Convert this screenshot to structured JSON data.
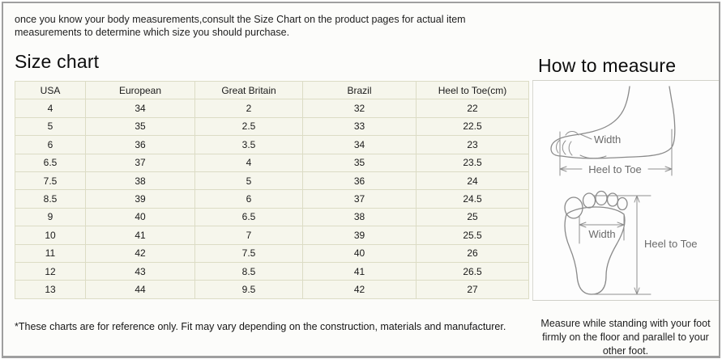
{
  "intro_text": "once you know your body measurements,consult the Size Chart on the product pages for actual item measurements to determine which size you should purchase.",
  "size_chart": {
    "title": "Size chart",
    "columns": [
      "USA",
      "European",
      "Great Britain",
      "Brazil",
      "Heel to Toe(cm)"
    ],
    "rows": [
      [
        "4",
        "34",
        "2",
        "32",
        "22"
      ],
      [
        "5",
        "35",
        "2.5",
        "33",
        "22.5"
      ],
      [
        "6",
        "36",
        "3.5",
        "34",
        "23"
      ],
      [
        "6.5",
        "37",
        "4",
        "35",
        "23.5"
      ],
      [
        "7.5",
        "38",
        "5",
        "36",
        "24"
      ],
      [
        "8.5",
        "39",
        "6",
        "37",
        "24.5"
      ],
      [
        "9",
        "40",
        "6.5",
        "38",
        "25"
      ],
      [
        "10",
        "41",
        "7",
        "39",
        "25.5"
      ],
      [
        "11",
        "42",
        "7.5",
        "40",
        "26"
      ],
      [
        "12",
        "43",
        "8.5",
        "41",
        "26.5"
      ],
      [
        "13",
        "44",
        "9.5",
        "42",
        "27"
      ]
    ],
    "footnote": "*These charts are for reference only. Fit may vary depending on the construction, materials and manufacturer."
  },
  "how_to_measure": {
    "title": "How to measure",
    "side_view_labels": {
      "width": "Width",
      "length": "Heel to Toe"
    },
    "footprint_labels": {
      "width": "Width",
      "length": "Heel to Toe"
    },
    "note": "Measure while standing with your foot firmly on the floor and parallel to your other foot."
  },
  "chart_data": {
    "type": "table",
    "title": "Size chart",
    "columns": [
      "USA",
      "European",
      "Great Britain",
      "Brazil",
      "Heel to Toe(cm)"
    ],
    "rows": [
      [
        "4",
        "34",
        "2",
        "32",
        "22"
      ],
      [
        "5",
        "35",
        "2.5",
        "33",
        "22.5"
      ],
      [
        "6",
        "36",
        "3.5",
        "34",
        "23"
      ],
      [
        "6.5",
        "37",
        "4",
        "35",
        "23.5"
      ],
      [
        "7.5",
        "38",
        "5",
        "36",
        "24"
      ],
      [
        "8.5",
        "39",
        "6",
        "37",
        "24.5"
      ],
      [
        "9",
        "40",
        "6.5",
        "38",
        "25"
      ],
      [
        "10",
        "41",
        "7",
        "39",
        "25.5"
      ],
      [
        "11",
        "42",
        "7.5",
        "40",
        "26"
      ],
      [
        "12",
        "43",
        "8.5",
        "41",
        "26.5"
      ],
      [
        "13",
        "44",
        "9.5",
        "42",
        "27"
      ]
    ]
  },
  "colors": {
    "table_cell_bg": "#f6f6ec",
    "table_border": "#dcdcc5",
    "frame_border": "#9f9f9f",
    "diagram_line": "#8a8a8a",
    "text": "#1c1c1c"
  }
}
